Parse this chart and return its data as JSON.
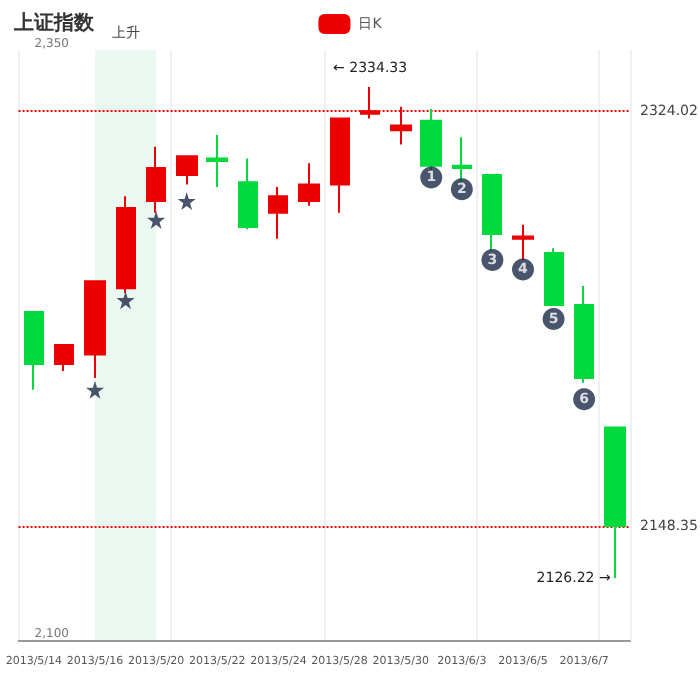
{
  "chart_data": {
    "type": "candlestick",
    "title": "上证指数",
    "categories": [
      "2013/5/14",
      null,
      "2013/5/16",
      null,
      "2013/5/20",
      null,
      "2013/5/22",
      null,
      "2013/5/24",
      null,
      "2013/5/28",
      null,
      "2013/5/30",
      null,
      "2013/6/3",
      null,
      "2013/6/5",
      null,
      "2013/6/7",
      null
    ],
    "series": [
      {
        "name": "日K",
        "color": "#ec0000",
        "ohlc": [
          [
            2239,
            2239,
            2206,
            2217
          ],
          [
            2217,
            2225,
            2214,
            2225
          ],
          [
            2221,
            2252,
            2211,
            2252
          ],
          [
            2249,
            2288,
            2247,
            2283
          ],
          [
            2286,
            2309,
            2281,
            2300
          ],
          [
            2297,
            2305,
            2293,
            2305
          ],
          [
            2304,
            2314,
            2292,
            2303
          ],
          [
            2294,
            2304,
            2274,
            2275
          ],
          [
            2281,
            2292,
            2270,
            2288
          ],
          [
            2286,
            2302,
            2284,
            2293
          ],
          [
            2293,
            2321,
            2281,
            2321
          ],
          [
            2323,
            2334.33,
            2321,
            2324
          ],
          [
            2316,
            2326,
            2310,
            2318
          ],
          [
            2320,
            2325,
            2299,
            2301
          ],
          [
            2301,
            2313,
            2293,
            2300
          ],
          [
            2297,
            2297,
            2265,
            2272
          ],
          [
            2270,
            2276,
            2261,
            2271
          ],
          [
            2264,
            2266,
            2242,
            2242
          ],
          [
            2242,
            2250,
            2209,
            2211
          ],
          [
            2190,
            2190,
            2126.22,
            2148.35
          ]
        ],
        "colors": [
          "#00da3c",
          "#ec0000",
          "#ec0000",
          "#ec0000",
          "#ec0000",
          "#ec0000",
          "#00da3c",
          "#00da3c",
          "#ec0000",
          "#ec0000",
          "#ec0000",
          "#ec0000",
          "#ec0000",
          "#00da3c",
          "#00da3c",
          "#00da3c",
          "#ec0000",
          "#00da3c",
          "#00da3c",
          "#00da3c"
        ]
      },
      {
        "type": "scatter",
        "marker": "star",
        "color": "#1b2a47",
        "values": [
          null,
          null,
          2206,
          2244,
          2278,
          2286,
          null,
          null,
          null,
          null,
          null,
          null,
          null,
          null,
          null,
          null,
          null,
          null,
          null,
          null
        ]
      },
      {
        "type": "scatter",
        "marker": "circle",
        "color": "#1b2a47",
        "values": [
          null,
          null,
          null,
          null,
          null,
          null,
          null,
          null,
          null,
          null,
          null,
          null,
          null,
          2296,
          2291,
          2261,
          2257,
          2236,
          2202,
          null
        ]
      }
    ],
    "ylim": [
      2100,
      2350
    ],
    "yticks": [
      {
        "value": 2100,
        "label": "2,100"
      },
      {
        "value": 2350,
        "label": "2,350"
      }
    ],
    "ref_lines": [
      {
        "axis": "y",
        "value": 2324.02,
        "label": "2324.02",
        "color": "#ec0000",
        "line_style": "dotted"
      },
      {
        "axis": "y",
        "value": 2148.35,
        "label": "2148.35",
        "color": "#ec0000",
        "line_style": "dotted"
      }
    ],
    "bands": [
      {
        "axis": "x",
        "from": "2013/5/16",
        "to": "2013/5/20",
        "label": "上升",
        "color": "#e6f5ee"
      }
    ],
    "annotations": [
      {
        "text": "← 2334.33",
        "y": 2334.33
      },
      "2126.22 →",
      {
        "text": "1",
        "y": 2296
      },
      {
        "text": "2",
        "y": 2291
      },
      {
        "text": "3",
        "y": 2261
      },
      {
        "text": "4",
        "y": 2257
      },
      {
        "text": "5",
        "y": 2236
      },
      {
        "text": "6",
        "y": 2202
      }
    ],
    "grid": "x",
    "legend": "top"
  }
}
